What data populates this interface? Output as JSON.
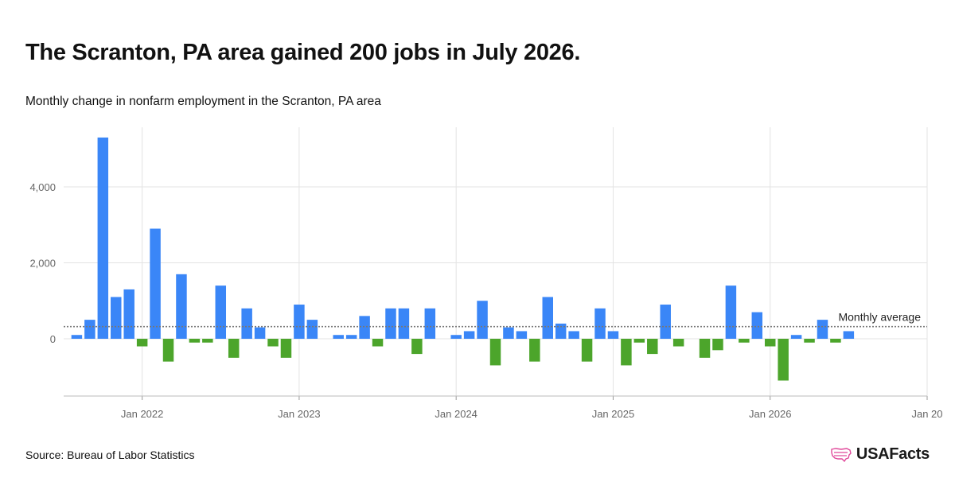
{
  "header": {
    "title": "The Scranton, PA area gained 200 jobs in July 2026.",
    "subtitle": "Monthly change in nonfarm employment in the Scranton, PA area"
  },
  "footer": {
    "source": "Source: Bureau of Labor Statistics",
    "brand": "USAFacts"
  },
  "colors": {
    "positive": "#3a86f7",
    "negative": "#4ca52b",
    "average_line": "#777777",
    "grid": "#e3e3e3",
    "brand_icon": "#e0489a"
  },
  "chart_data": {
    "type": "bar",
    "title": "The Scranton, PA area gained 200 jobs in July 2026.",
    "subtitle": "Monthly change in nonfarm employment in the Scranton, PA area",
    "x_start": "2021-07",
    "x_end": "2027-01",
    "x_ticks": [
      "Jan 2022",
      "Jan 2023",
      "Jan 2024",
      "Jan 2025",
      "Jan 2026",
      "Jan 20"
    ],
    "y_ticks": [
      "0",
      "2,000",
      "4,000"
    ],
    "ylim": [
      -1500,
      5500
    ],
    "grid": true,
    "categories": [
      "2021-08",
      "2021-09",
      "2021-10",
      "2021-11",
      "2021-12",
      "2022-01",
      "2022-02",
      "2022-03",
      "2022-04",
      "2022-05",
      "2022-06",
      "2022-07",
      "2022-08",
      "2022-09",
      "2022-10",
      "2022-11",
      "2022-12",
      "2023-01",
      "2023-02",
      "2023-03",
      "2023-04",
      "2023-05",
      "2023-06",
      "2023-07",
      "2023-08",
      "2023-09",
      "2023-10",
      "2023-11",
      "2023-12",
      "2024-01",
      "2024-02",
      "2024-03",
      "2024-04",
      "2024-05",
      "2024-06",
      "2024-07",
      "2024-08",
      "2024-09",
      "2024-10",
      "2024-11",
      "2024-12",
      "2025-01",
      "2025-02",
      "2025-03",
      "2025-04",
      "2025-05",
      "2025-06",
      "2025-07",
      "2025-08",
      "2025-09",
      "2025-10",
      "2025-11",
      "2025-12",
      "2026-01",
      "2026-02",
      "2026-03",
      "2026-04",
      "2026-05",
      "2026-06",
      "2026-07"
    ],
    "values": [
      100,
      500,
      5300,
      1100,
      1300,
      -200,
      2900,
      -600,
      1700,
      -100,
      -100,
      1400,
      -500,
      800,
      300,
      -200,
      -500,
      900,
      500,
      0,
      100,
      100,
      600,
      -200,
      800,
      800,
      -400,
      800,
      0,
      100,
      200,
      1000,
      -700,
      300,
      200,
      -600,
      1100,
      400,
      200,
      -600,
      800,
      200,
      -700,
      -100,
      -400,
      900,
      -200,
      0,
      -500,
      -300,
      1400,
      -100,
      700,
      -200,
      -1100,
      100,
      -100,
      500,
      -100,
      200
    ],
    "average": {
      "label": "Monthly average",
      "value": 320
    }
  }
}
